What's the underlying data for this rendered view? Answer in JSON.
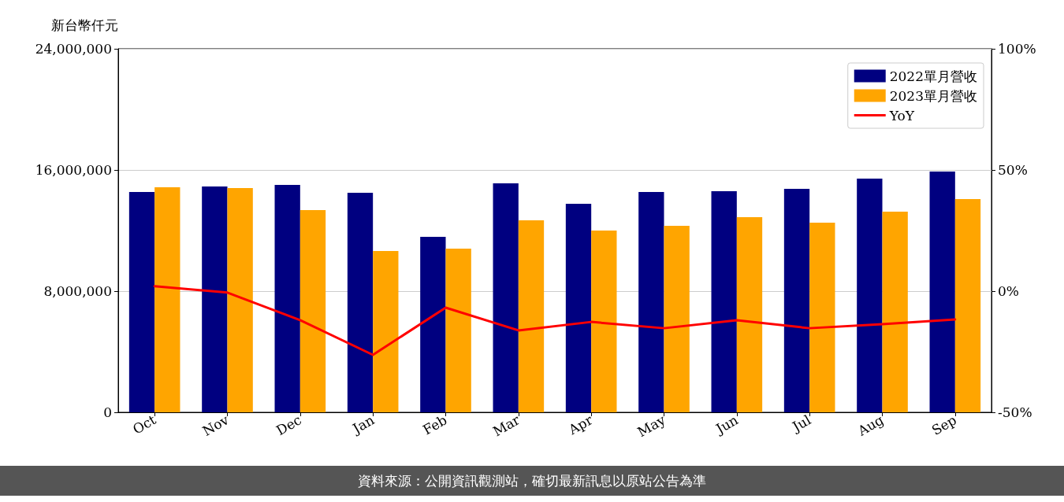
{
  "chart_data": {
    "type": "bar",
    "ylabel": "新台幣仟元",
    "categories": [
      "Oct",
      "Nov",
      "Dec",
      "Jan",
      "Feb",
      "Mar",
      "Apr",
      "May",
      "Jun",
      "Jul",
      "Aug",
      "Sep"
    ],
    "series": [
      {
        "name": "2022單月營收",
        "color": "#000080",
        "values": [
          14550000,
          14910000,
          15010000,
          14490000,
          11580000,
          15120000,
          13770000,
          14550000,
          14600000,
          14750000,
          15430000,
          15900000
        ]
      },
      {
        "name": "2023單月營收",
        "color": "#ffa500",
        "values": [
          14860000,
          14810000,
          13350000,
          10650000,
          10810000,
          12680000,
          12000000,
          12310000,
          12880000,
          12520000,
          13250000,
          14080000
        ]
      },
      {
        "name": "YoY",
        "type": "line",
        "axis": "y2",
        "color": "#ff0000",
        "values": [
          2.0,
          -0.6,
          -12,
          -26.3,
          -6.8,
          -16.2,
          -12.7,
          -15.3,
          -12,
          -15.3,
          -13.6,
          -11.7
        ]
      }
    ],
    "ylim": [
      0,
      24000000
    ],
    "yticks": [
      0,
      {
        "value": 8000000,
        "label": "8,000,000"
      },
      {
        "value": 16000000,
        "label": "16,000,000"
      },
      {
        "value": 24000000,
        "label": "24,000,000"
      }
    ],
    "y2lim": [
      -50,
      100
    ],
    "y2ticks": [
      {
        "value": -50,
        "label": "-50%"
      },
      {
        "value": 0,
        "label": "0%"
      },
      {
        "value": 50,
        "label": "50%"
      },
      {
        "value": 100,
        "label": "100%"
      }
    ],
    "grid": "y",
    "legend": "top right",
    "marker": "none",
    "line_style": "solid",
    "annotations": [
      "資料來源：公開資訊觀測站，確切最新訊息以原站公告為準"
    ]
  }
}
